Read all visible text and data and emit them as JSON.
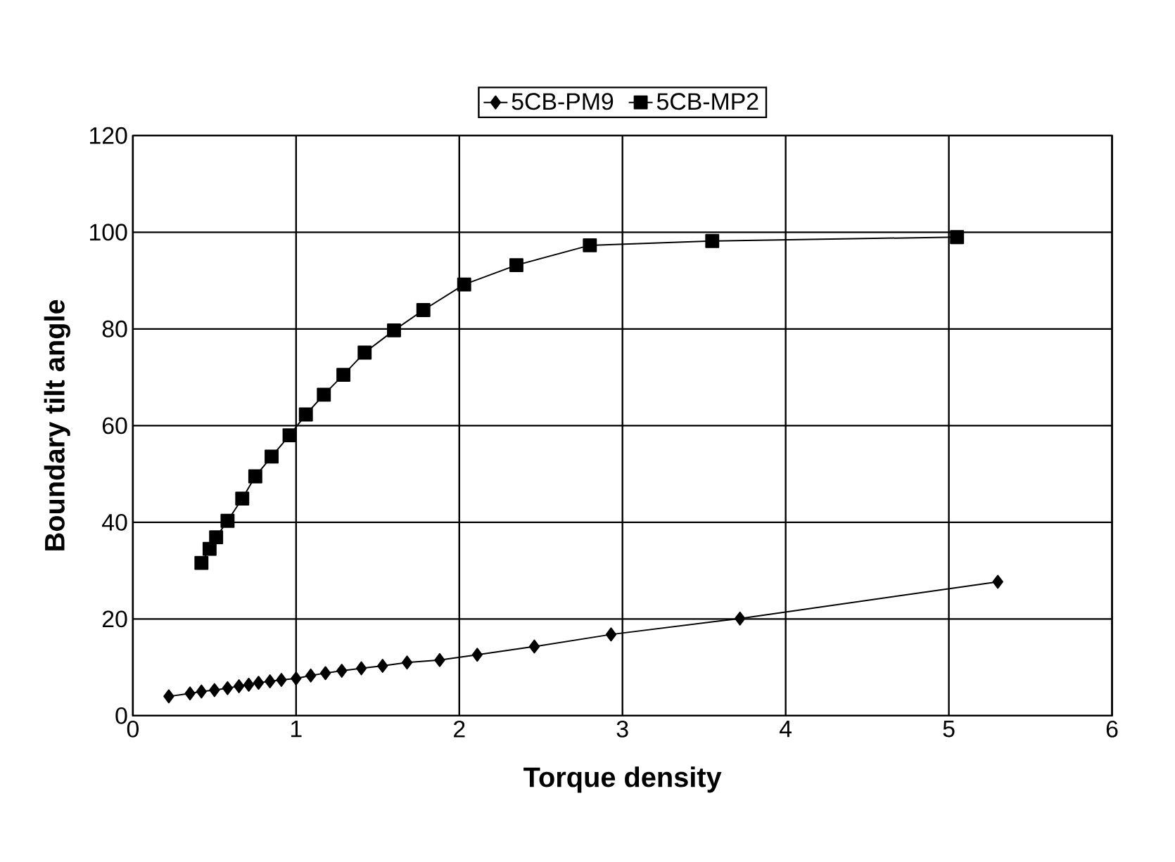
{
  "chart_data": {
    "type": "line",
    "xlabel": "Torque density",
    "ylabel": "Boundary tilt angle",
    "xlim": [
      0,
      6
    ],
    "ylim": [
      0,
      120
    ],
    "xticks": [
      0,
      1,
      2,
      3,
      4,
      5,
      6
    ],
    "yticks": [
      0,
      20,
      40,
      60,
      80,
      100,
      120
    ],
    "grid": true,
    "legend": "top",
    "series": [
      {
        "name": "5CB-PM9",
        "color": "#000000",
        "marker": "diamond",
        "x": [
          0.22,
          0.35,
          0.42,
          0.5,
          0.58,
          0.65,
          0.71,
          0.77,
          0.84,
          0.91,
          1.0,
          1.09,
          1.18,
          1.28,
          1.4,
          1.53,
          1.68,
          1.88,
          2.11,
          2.46,
          2.93,
          3.72,
          5.3
        ],
        "values": [
          4.0,
          4.6,
          5.0,
          5.3,
          5.7,
          6.1,
          6.4,
          6.8,
          7.1,
          7.4,
          7.7,
          8.3,
          8.8,
          9.3,
          9.8,
          10.3,
          11.0,
          11.5,
          12.6,
          14.3,
          16.8,
          20.1,
          27.7
        ]
      },
      {
        "name": "5CB-MP2",
        "color": "#000000",
        "marker": "square",
        "x": [
          0.42,
          0.47,
          0.51,
          0.58,
          0.67,
          0.75,
          0.85,
          0.96,
          1.06,
          1.17,
          1.29,
          1.42,
          1.6,
          1.78,
          2.03,
          2.35,
          2.8,
          3.55,
          5.05
        ],
        "values": [
          31.6,
          34.5,
          36.9,
          40.3,
          44.9,
          49.5,
          53.6,
          58.0,
          62.3,
          66.4,
          70.5,
          75.1,
          79.7,
          83.9,
          89.2,
          93.2,
          97.3,
          98.2,
          99.0
        ]
      }
    ]
  }
}
